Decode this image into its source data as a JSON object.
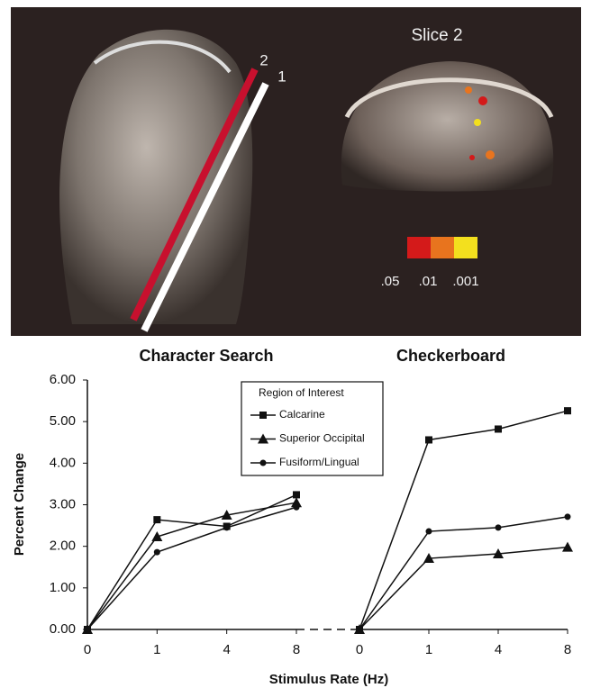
{
  "image": {
    "slice_label": "Slice 2",
    "line_labels": [
      "2",
      "1"
    ],
    "scale_labels": [
      ".05",
      ".01",
      ".001"
    ],
    "scale_colors": [
      "#d41a1a",
      "#e8741e",
      "#f3e01e"
    ],
    "line_colors": [
      "#c8102e",
      "#ffffff"
    ]
  },
  "chart_data": [
    {
      "type": "line",
      "title": "Character Search",
      "ylabel": "Percent Change",
      "xlabel": "Stimulus Rate (Hz)",
      "legend_title": "Region of Interest",
      "categories": [
        "0",
        "1",
        "4",
        "8"
      ],
      "series": [
        {
          "name": "Calcarine",
          "marker": "square",
          "color": "#111111",
          "values": [
            0,
            2.64,
            2.48,
            3.24
          ]
        },
        {
          "name": "Superior Occipital",
          "marker": "triangle",
          "color": "#111111",
          "values": [
            0,
            2.23,
            2.75,
            3.05
          ]
        },
        {
          "name": "Fusiform/Lingual",
          "marker": "circle",
          "color": "#111111",
          "values": [
            0,
            1.86,
            2.45,
            2.94
          ]
        }
      ],
      "ylim": [
        0,
        6
      ],
      "yticks": [
        {
          "value": 0,
          "label": "0.00"
        },
        {
          "value": 1,
          "label": "1.00"
        },
        {
          "value": 2,
          "label": "2.00"
        },
        {
          "value": 3,
          "label": "3.00"
        },
        {
          "value": 4,
          "label": "4.00"
        },
        {
          "value": 5,
          "label": "5.00"
        },
        {
          "value": 6,
          "label": "6.00"
        }
      ]
    },
    {
      "type": "line",
      "title": "Checkerboard",
      "categories": [
        "0",
        "1",
        "4",
        "8"
      ],
      "series": [
        {
          "name": "Calcarine",
          "marker": "square",
          "color": "#111111",
          "values": [
            0,
            4.56,
            4.82,
            5.26
          ]
        },
        {
          "name": "Superior Occipital",
          "marker": "triangle",
          "color": "#111111",
          "values": [
            0,
            1.71,
            1.82,
            1.98
          ]
        },
        {
          "name": "Fusiform/Lingual",
          "marker": "circle",
          "color": "#111111",
          "values": [
            0,
            2.36,
            2.45,
            2.71
          ]
        }
      ],
      "ylim": [
        0,
        6
      ]
    }
  ]
}
